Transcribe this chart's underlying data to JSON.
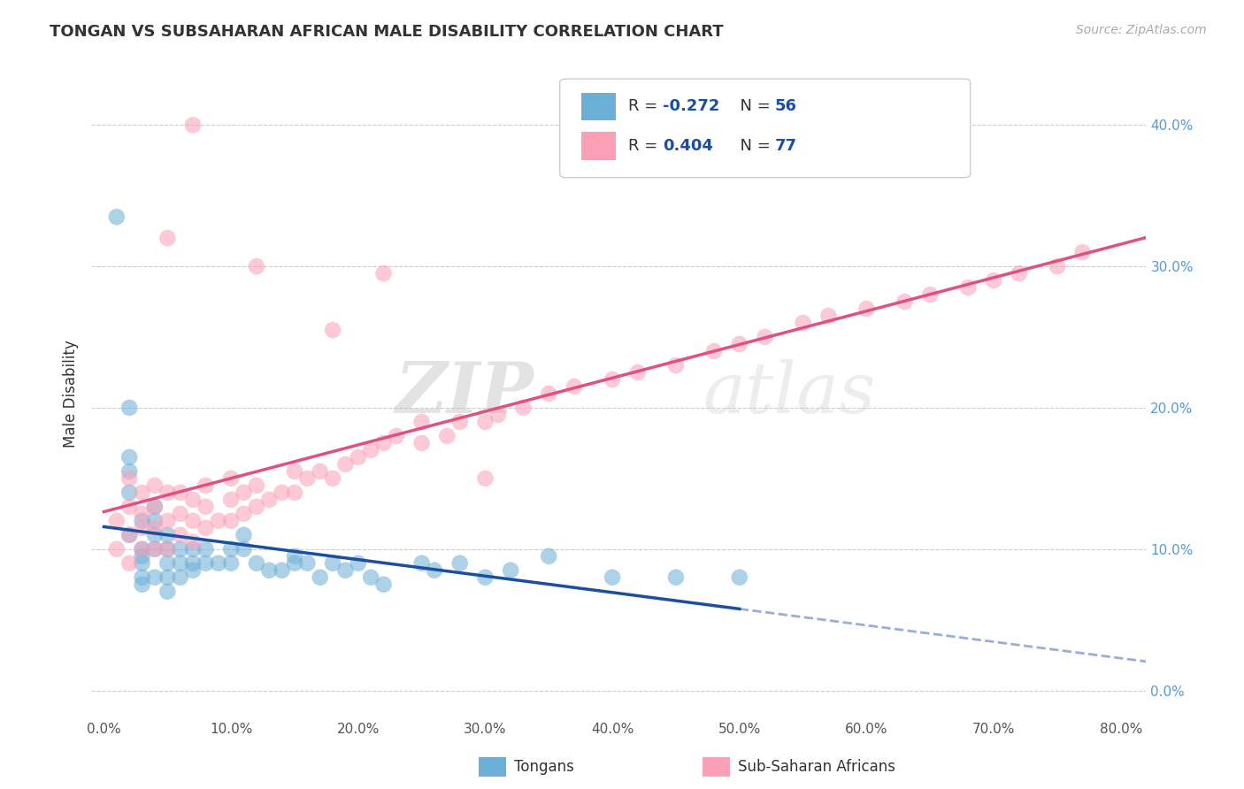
{
  "title": "TONGAN VS SUBSAHARAN AFRICAN MALE DISABILITY CORRELATION CHART",
  "source": "Source: ZipAtlas.com",
  "ylabel": "Male Disability",
  "x_ticks": [
    0.0,
    0.1,
    0.2,
    0.3,
    0.4,
    0.5,
    0.6,
    0.7,
    0.8
  ],
  "x_tick_labels": [
    "0.0%",
    "10.0%",
    "20.0%",
    "30.0%",
    "40.0%",
    "50.0%",
    "60.0%",
    "70.0%",
    "80.0%"
  ],
  "y_ticks": [
    0.0,
    0.1,
    0.2,
    0.3,
    0.4
  ],
  "y_tick_labels": [
    "0.0%",
    "10.0%",
    "20.0%",
    "30.0%",
    "40.0%"
  ],
  "xlim": [
    -0.01,
    0.82
  ],
  "ylim": [
    -0.02,
    0.44
  ],
  "legend_label1": "Tongans",
  "legend_label2": "Sub-Saharan Africans",
  "R1": -0.272,
  "N1": 56,
  "R2": 0.404,
  "N2": 77,
  "color1": "#6baed6",
  "color2": "#fa9fb5",
  "trendline1_color": "#1a4fa0",
  "trendline2_color": "#e05080",
  "background_color": "#ffffff",
  "watermark_zip": "ZIP",
  "watermark_atlas": "atlas",
  "title_fontsize": 13,
  "tongans_x": [
    0.01,
    0.02,
    0.02,
    0.02,
    0.02,
    0.03,
    0.03,
    0.03,
    0.03,
    0.03,
    0.03,
    0.04,
    0.04,
    0.04,
    0.04,
    0.04,
    0.05,
    0.05,
    0.05,
    0.05,
    0.05,
    0.06,
    0.06,
    0.06,
    0.07,
    0.07,
    0.07,
    0.08,
    0.08,
    0.09,
    0.1,
    0.1,
    0.11,
    0.11,
    0.12,
    0.13,
    0.14,
    0.15,
    0.15,
    0.16,
    0.17,
    0.18,
    0.19,
    0.2,
    0.21,
    0.22,
    0.25,
    0.26,
    0.28,
    0.3,
    0.32,
    0.35,
    0.4,
    0.45,
    0.5,
    0.02
  ],
  "tongans_y": [
    0.335,
    0.11,
    0.14,
    0.155,
    0.165,
    0.075,
    0.08,
    0.09,
    0.095,
    0.1,
    0.12,
    0.08,
    0.1,
    0.11,
    0.12,
    0.13,
    0.07,
    0.08,
    0.09,
    0.1,
    0.11,
    0.08,
    0.09,
    0.1,
    0.085,
    0.09,
    0.1,
    0.09,
    0.1,
    0.09,
    0.09,
    0.1,
    0.1,
    0.11,
    0.09,
    0.085,
    0.085,
    0.09,
    0.095,
    0.09,
    0.08,
    0.09,
    0.085,
    0.09,
    0.08,
    0.075,
    0.09,
    0.085,
    0.09,
    0.08,
    0.085,
    0.095,
    0.08,
    0.08,
    0.08,
    0.2
  ],
  "subsaharan_x": [
    0.01,
    0.01,
    0.02,
    0.02,
    0.02,
    0.02,
    0.03,
    0.03,
    0.03,
    0.03,
    0.04,
    0.04,
    0.04,
    0.04,
    0.05,
    0.05,
    0.05,
    0.06,
    0.06,
    0.06,
    0.07,
    0.07,
    0.07,
    0.08,
    0.08,
    0.08,
    0.09,
    0.1,
    0.1,
    0.1,
    0.11,
    0.11,
    0.12,
    0.12,
    0.13,
    0.14,
    0.15,
    0.15,
    0.16,
    0.17,
    0.18,
    0.19,
    0.2,
    0.21,
    0.22,
    0.23,
    0.25,
    0.25,
    0.27,
    0.28,
    0.3,
    0.31,
    0.33,
    0.35,
    0.37,
    0.4,
    0.42,
    0.45,
    0.48,
    0.5,
    0.52,
    0.55,
    0.57,
    0.6,
    0.63,
    0.65,
    0.68,
    0.7,
    0.72,
    0.75,
    0.77,
    0.3,
    0.12,
    0.18,
    0.22,
    0.05,
    0.07
  ],
  "subsaharan_y": [
    0.1,
    0.12,
    0.09,
    0.11,
    0.13,
    0.15,
    0.1,
    0.115,
    0.125,
    0.14,
    0.1,
    0.115,
    0.13,
    0.145,
    0.1,
    0.12,
    0.14,
    0.11,
    0.125,
    0.14,
    0.105,
    0.12,
    0.135,
    0.115,
    0.13,
    0.145,
    0.12,
    0.12,
    0.135,
    0.15,
    0.125,
    0.14,
    0.13,
    0.145,
    0.135,
    0.14,
    0.14,
    0.155,
    0.15,
    0.155,
    0.15,
    0.16,
    0.165,
    0.17,
    0.175,
    0.18,
    0.175,
    0.19,
    0.18,
    0.19,
    0.19,
    0.195,
    0.2,
    0.21,
    0.215,
    0.22,
    0.225,
    0.23,
    0.24,
    0.245,
    0.25,
    0.26,
    0.265,
    0.27,
    0.275,
    0.28,
    0.285,
    0.29,
    0.295,
    0.3,
    0.31,
    0.15,
    0.3,
    0.255,
    0.295,
    0.32,
    0.4
  ]
}
